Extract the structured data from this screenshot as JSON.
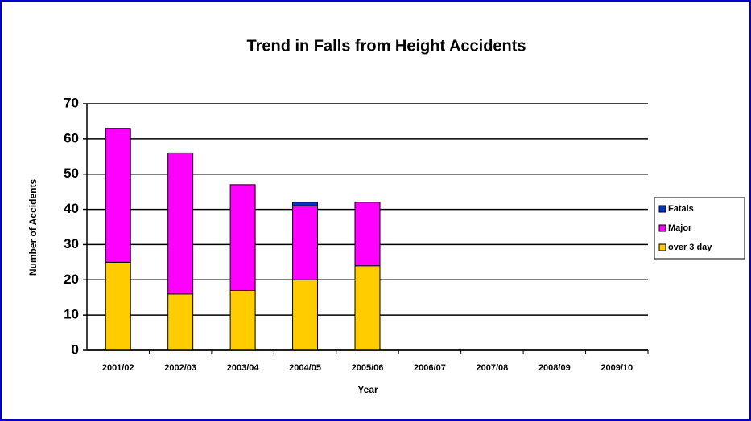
{
  "chart_data": {
    "type": "bar",
    "stacked": true,
    "title": "Trend in Falls from Height Accidents",
    "x_label": "Year",
    "y_label": "Number of Accidents",
    "categories": [
      "2001/02",
      "2002/03",
      "2003/04",
      "2004/05",
      "2005/06",
      "2006/07",
      "2007/08",
      "2008/09",
      "2009/10"
    ],
    "series": [
      {
        "name": "over 3 day",
        "color": "#ffcc00",
        "values": [
          25,
          16,
          17,
          20,
          24,
          null,
          null,
          null,
          null
        ]
      },
      {
        "name": "Major",
        "color": "#ff00ff",
        "values": [
          38,
          40,
          30,
          21,
          18,
          null,
          null,
          null,
          null
        ]
      },
      {
        "name": "Fatals",
        "color": "#0033cc",
        "values": [
          0,
          0,
          0,
          1,
          0,
          null,
          null,
          null,
          null
        ]
      }
    ],
    "ylim": [
      0,
      70
    ],
    "yticks": [
      0,
      10,
      20,
      30,
      40,
      50,
      60,
      70
    ],
    "grid": true,
    "legend": "right"
  }
}
